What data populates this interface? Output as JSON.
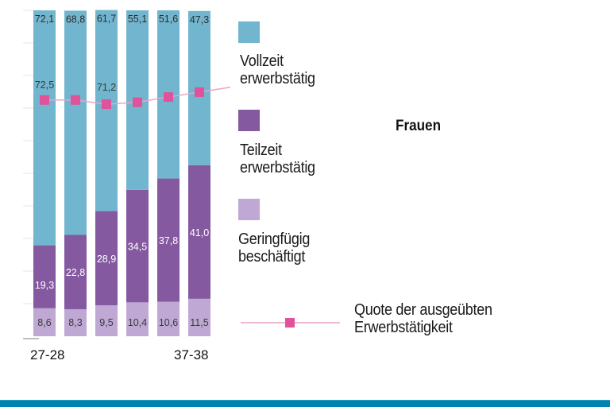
{
  "chart_data": {
    "type": "bar",
    "stacked": true,
    "title": "Frauen",
    "categories": [
      "27-28",
      "",
      "",
      "",
      "",
      "37-38"
    ],
    "x_tick_labels_shown": [
      "27-28",
      "37-38"
    ],
    "ylim": [
      0,
      100
    ],
    "grid": true,
    "series": [
      {
        "name": "Geringfügig beschäftigt",
        "color": "#c0a8d4",
        "values": [
          8.6,
          8.3,
          9.5,
          10.4,
          10.6,
          11.5
        ],
        "labels": [
          "8,6",
          "8,3",
          "9,5",
          "10,4",
          "10,6",
          "11,5"
        ]
      },
      {
        "name": "Teilzeit erwerbstätig",
        "color": "#8459a0",
        "values": [
          19.3,
          22.8,
          28.9,
          34.5,
          37.8,
          41.0
        ],
        "labels": [
          "19,3",
          "22,8",
          "28,9",
          "34,5",
          "37,8",
          "41,0"
        ]
      },
      {
        "name": "Vollzeit erwerbstätig",
        "color": "#72b5ce",
        "values": [
          72.1,
          68.8,
          61.7,
          55.1,
          51.6,
          47.3
        ],
        "labels": [
          "72,1",
          "68,8",
          "61,7",
          "55,1",
          "51,6",
          "47,3"
        ]
      }
    ],
    "line": {
      "name": "Quote der ausgeübten Erwerbstätigkeit",
      "color": "#e0529a",
      "line_color": "#eba3c8",
      "values": [
        72.5,
        72.5,
        71.2,
        71.8,
        73.4,
        74.9
      ],
      "labels": [
        "72,5",
        "",
        "71,2",
        "",
        "",
        ""
      ]
    },
    "legend": {
      "placement": "right",
      "items": [
        {
          "label_line1": "Vollzeit",
          "label_line2": "erwerbstätig",
          "color": "#72b5ce"
        },
        {
          "label_line1": "Teilzeit",
          "label_line2": "erwerbstätig",
          "color": "#8459a0"
        },
        {
          "label_line1": "Geringfügig",
          "label_line2": "beschäftigt",
          "color": "#c0a8d4"
        },
        {
          "label_line1": "Quote der ausgeübten",
          "label_line2": "Erwerbstätigkeit",
          "color": "#e0529a"
        }
      ]
    }
  },
  "footer": {
    "color": "#0083b0"
  }
}
